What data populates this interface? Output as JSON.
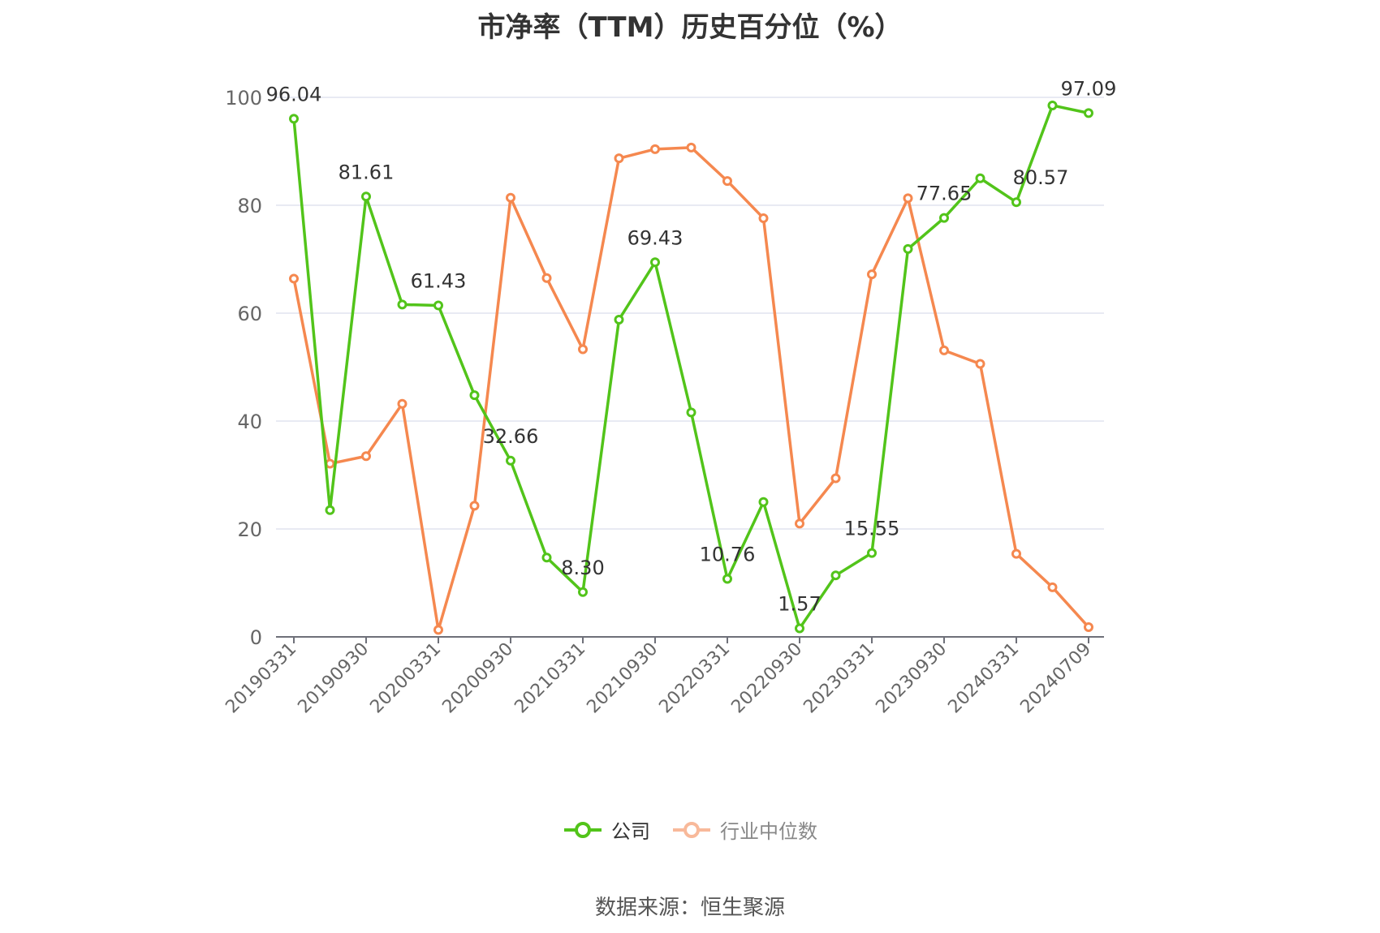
{
  "title": "市净率（TTM）历史百分位（%）",
  "source": "数据来源：恒生聚源",
  "chart_data": {
    "type": "line",
    "title": "市净率（TTM）历史百分位（%）",
    "ylim": [
      0,
      100
    ],
    "yticks": [
      0,
      20,
      40,
      60,
      80,
      100
    ],
    "grid": true,
    "legend_position": "bottom",
    "x_tick_labels": [
      "20190331",
      "20190930",
      "20200331",
      "20200930",
      "20210331",
      "20210930",
      "20220331",
      "20220930",
      "20230331",
      "20230930",
      "20240331",
      "20240709"
    ],
    "x": [
      "20190331",
      "20190630",
      "20190930",
      "20191231",
      "20200331",
      "20200630",
      "20200930",
      "20201231",
      "20210331",
      "20210630",
      "20210930",
      "20211231",
      "20220331",
      "20220630",
      "20220930",
      "20221231",
      "20230331",
      "20230630",
      "20230930",
      "20231231",
      "20240331",
      "20240630",
      "20240709"
    ],
    "series": [
      {
        "name": "公司",
        "color": "#52c41a",
        "values": [
          96.04,
          23.5,
          81.61,
          61.6,
          61.43,
          44.8,
          32.66,
          14.7,
          8.3,
          58.8,
          69.43,
          41.6,
          10.76,
          25.0,
          1.57,
          11.4,
          15.55,
          71.9,
          77.65,
          85.0,
          80.57,
          98.5,
          97.09
        ],
        "labels": {
          "0": "96.04",
          "2": "81.61",
          "4": "61.43",
          "6": "32.66",
          "8": "8.30",
          "10": "69.43",
          "12": "10.76",
          "14": "1.57",
          "16": "15.55",
          "18": "77.65",
          "20": "80.57",
          "22": "97.09"
        }
      },
      {
        "name": "行业中位数",
        "color": "#f5884f",
        "values": [
          66.4,
          32.1,
          33.5,
          43.2,
          1.3,
          24.3,
          81.4,
          66.5,
          53.3,
          88.7,
          90.4,
          90.7,
          84.5,
          77.6,
          21.0,
          29.4,
          67.2,
          81.3,
          53.1,
          50.6,
          15.4,
          9.2,
          1.8
        ],
        "labels": {}
      }
    ]
  }
}
